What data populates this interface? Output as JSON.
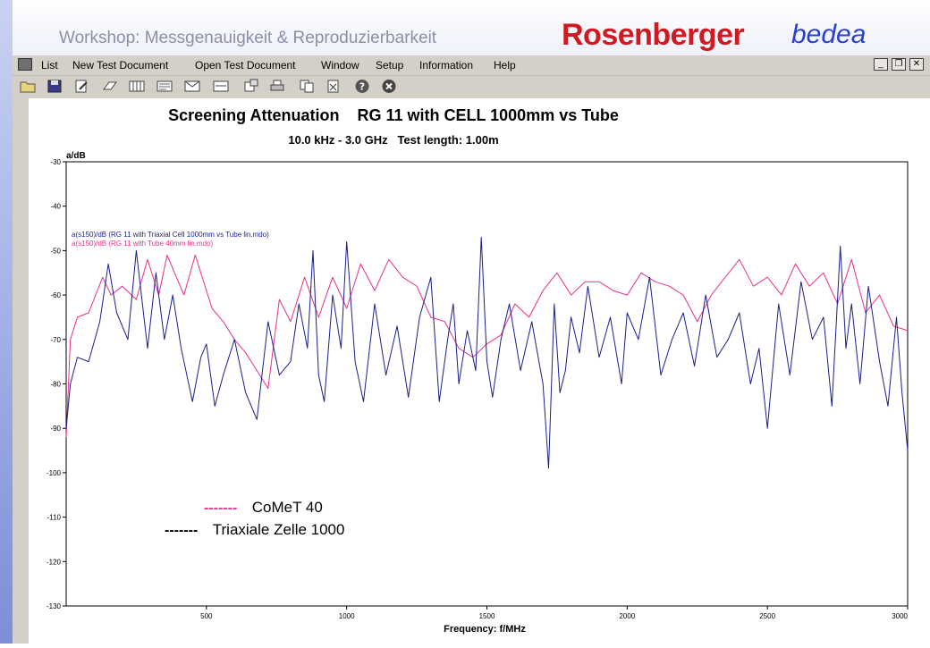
{
  "slide": {
    "workshop_title": "Workshop: Messgenauigkeit & Reproduzierbarkeit",
    "brand_name": "Rosenberger",
    "brand_suffix": "bedea",
    "brand_color": "#d01920",
    "brand_suffix_color": "#2a3fcc"
  },
  "menu": {
    "items": [
      "List",
      "New Test Document",
      "Open Test Document",
      "Window",
      "Setup",
      "Information",
      "Help"
    ]
  },
  "window_controls": [
    "_",
    "❐",
    "✕"
  ],
  "toolbar": {
    "icons": [
      "open-folder-icon",
      "save-icon",
      "edit-document-icon",
      "eraser-icon",
      "table-icon",
      "notes-icon",
      "envelope-icon",
      "chart-window-icon",
      "export-icon",
      "print-icon",
      "copy-icon",
      "delete-icon",
      "help-icon",
      "close-icon"
    ]
  },
  "overlay_legend": {
    "pink_dashes": "-------",
    "pink_label": "CoMeT 40",
    "black_dashes": "-------",
    "black_label": "Triaxiale Zelle 1000"
  },
  "chart_data": {
    "type": "line",
    "title": "Screening Attenuation    RG 11 with CELL 1000mm vs Tube",
    "subtitle": "10.0 kHz - 3.0 GHz   Test length: 1.00m",
    "ylabel": "a/dB",
    "xlabel": "Frequency: f/MHz",
    "xlim": [
      0,
      3000
    ],
    "ylim": [
      -130,
      -30
    ],
    "x_ticks": [
      500,
      1000,
      1500,
      2000,
      2500,
      3000
    ],
    "y_ticks": [
      -30,
      -40,
      -50,
      -60,
      -70,
      -80,
      -90,
      -100,
      -110,
      -120,
      -130
    ],
    "grid": false,
    "legend_position": "top-left",
    "series": [
      {
        "name": "a(s150)/dB (RG 11 with Triaxial Cell 1000mm vs Tube lin.mdo)",
        "color": "#1a1f8a",
        "x": [
          0,
          15,
          40,
          80,
          120,
          150,
          180,
          220,
          250,
          290,
          320,
          350,
          380,
          410,
          450,
          480,
          500,
          530,
          560,
          600,
          640,
          680,
          720,
          760,
          800,
          830,
          860,
          880,
          900,
          920,
          950,
          980,
          1000,
          1030,
          1060,
          1100,
          1140,
          1180,
          1220,
          1260,
          1300,
          1330,
          1360,
          1380,
          1400,
          1430,
          1460,
          1480,
          1500,
          1520,
          1550,
          1580,
          1620,
          1660,
          1700,
          1720,
          1740,
          1760,
          1780,
          1800,
          1830,
          1860,
          1900,
          1940,
          1980,
          2000,
          2040,
          2080,
          2120,
          2160,
          2200,
          2240,
          2280,
          2320,
          2360,
          2400,
          2440,
          2470,
          2500,
          2540,
          2580,
          2620,
          2660,
          2700,
          2730,
          2760,
          2780,
          2800,
          2830,
          2860,
          2900,
          2930,
          2960,
          2980,
          3000
        ],
        "y": [
          -90,
          -80,
          -74,
          -75,
          -66,
          -53,
          -64,
          -70,
          -50,
          -72,
          -55,
          -70,
          -60,
          -72,
          -84,
          -74,
          -71,
          -85,
          -78,
          -70,
          -82,
          -88,
          -66,
          -78,
          -75,
          -62,
          -72,
          -50,
          -78,
          -84,
          -60,
          -72,
          -48,
          -75,
          -84,
          -62,
          -78,
          -67,
          -83,
          -65,
          -56,
          -84,
          -70,
          -62,
          -80,
          -68,
          -77,
          -47,
          -75,
          -83,
          -70,
          -62,
          -77,
          -66,
          -80,
          -99,
          -62,
          -82,
          -77,
          -65,
          -73,
          -58,
          -74,
          -65,
          -80,
          -64,
          -70,
          -56,
          -78,
          -70,
          -64,
          -76,
          -60,
          -74,
          -70,
          -64,
          -80,
          -72,
          -90,
          -62,
          -78,
          -57,
          -70,
          -65,
          -85,
          -49,
          -72,
          -62,
          -80,
          -58,
          -75,
          -85,
          -65,
          -82,
          -95
        ]
      },
      {
        "name": "a(s150)/dB (RG 11 with Tube 40mm lin.mdo)",
        "color": "#e8308c",
        "x": [
          0,
          15,
          40,
          80,
          130,
          160,
          200,
          250,
          290,
          330,
          360,
          420,
          460,
          520,
          560,
          600,
          640,
          680,
          720,
          760,
          800,
          850,
          900,
          950,
          1000,
          1050,
          1100,
          1150,
          1200,
          1250,
          1300,
          1350,
          1400,
          1450,
          1500,
          1550,
          1600,
          1650,
          1700,
          1750,
          1800,
          1850,
          1900,
          1950,
          2000,
          2050,
          2100,
          2150,
          2200,
          2250,
          2300,
          2350,
          2400,
          2450,
          2500,
          2550,
          2600,
          2650,
          2700,
          2750,
          2800,
          2850,
          2900,
          2950,
          3000
        ],
        "y": [
          -92,
          -70,
          -65,
          -64,
          -56,
          -60,
          -58,
          -61,
          -52,
          -60,
          -51,
          -60,
          -51,
          -63,
          -66,
          -70,
          -73,
          -77,
          -81,
          -61,
          -66,
          -56,
          -65,
          -56,
          -63,
          -53,
          -59,
          -52,
          -56,
          -58,
          -65,
          -66,
          -72,
          -74,
          -71,
          -69,
          -62,
          -65,
          -59,
          -55,
          -60,
          -57,
          -57,
          -59,
          -60,
          -55,
          -57,
          -58,
          -60,
          -66,
          -60,
          -56,
          -52,
          -58,
          -56,
          -60,
          -53,
          -58,
          -55,
          -62,
          -52,
          -64,
          -60,
          -67,
          -68
        ]
      }
    ]
  }
}
